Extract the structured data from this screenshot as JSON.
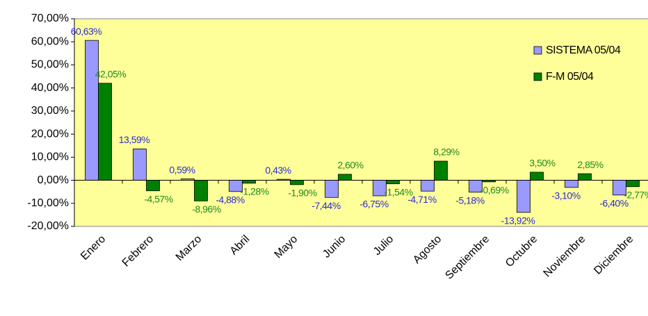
{
  "chart_data": {
    "type": "bar",
    "categories": [
      "Enero",
      "Febrero",
      "Marzo",
      "Abril",
      "Mayo",
      "Junio",
      "Julio",
      "Agosto",
      "Septiembre",
      "Octubre",
      "Noviembre",
      "Diciembre"
    ],
    "series": [
      {
        "name": "SISTEMA 05/04",
        "color": "#9999ff",
        "label_color": "#2a2ad6",
        "values": [
          60.63,
          13.59,
          0.59,
          -4.88,
          0.43,
          -7.44,
          -6.75,
          -4.71,
          -5.18,
          -13.92,
          -3.1,
          -6.4
        ],
        "value_labels": [
          "60,63%",
          "13,59%",
          "0,59%",
          "-4,88%",
          "0,43%",
          "-7,44%",
          "-6,75%",
          "-4,71%",
          "-5,18%",
          "-13,92%",
          "-3,10%",
          "-6,40%"
        ]
      },
      {
        "name": "F-M 05/04",
        "color": "#008000",
        "label_color": "#1c8a1c",
        "values": [
          42.05,
          -4.57,
          -8.96,
          -1.28,
          -1.9,
          2.6,
          -1.54,
          8.29,
          -0.69,
          3.5,
          2.85,
          -2.77
        ],
        "value_labels": [
          "42,05%",
          "-4,57%",
          "-8,96%",
          "-1,28%",
          "-1,90%",
          "2,60%",
          "-1,54%",
          "8,29%",
          "-0,69%",
          "3,50%",
          "2,85%",
          "-2,77%"
        ]
      }
    ],
    "ylim": [
      -20,
      70
    ],
    "yticks": [
      {
        "value": -20,
        "label": "-20,00%"
      },
      {
        "value": -10,
        "label": "-10,00%"
      },
      {
        "value": 0,
        "label": "0,00%"
      },
      {
        "value": 10,
        "label": "10,00%"
      },
      {
        "value": 20,
        "label": "20,00%"
      },
      {
        "value": 30,
        "label": "30,00%"
      },
      {
        "value": 40,
        "label": "40,00%"
      },
      {
        "value": 50,
        "label": "50,00%"
      },
      {
        "value": 60,
        "label": "60,00%"
      },
      {
        "value": 70,
        "label": "70,00%"
      }
    ],
    "legend": "top-right",
    "plot_background": "#ffff99"
  }
}
